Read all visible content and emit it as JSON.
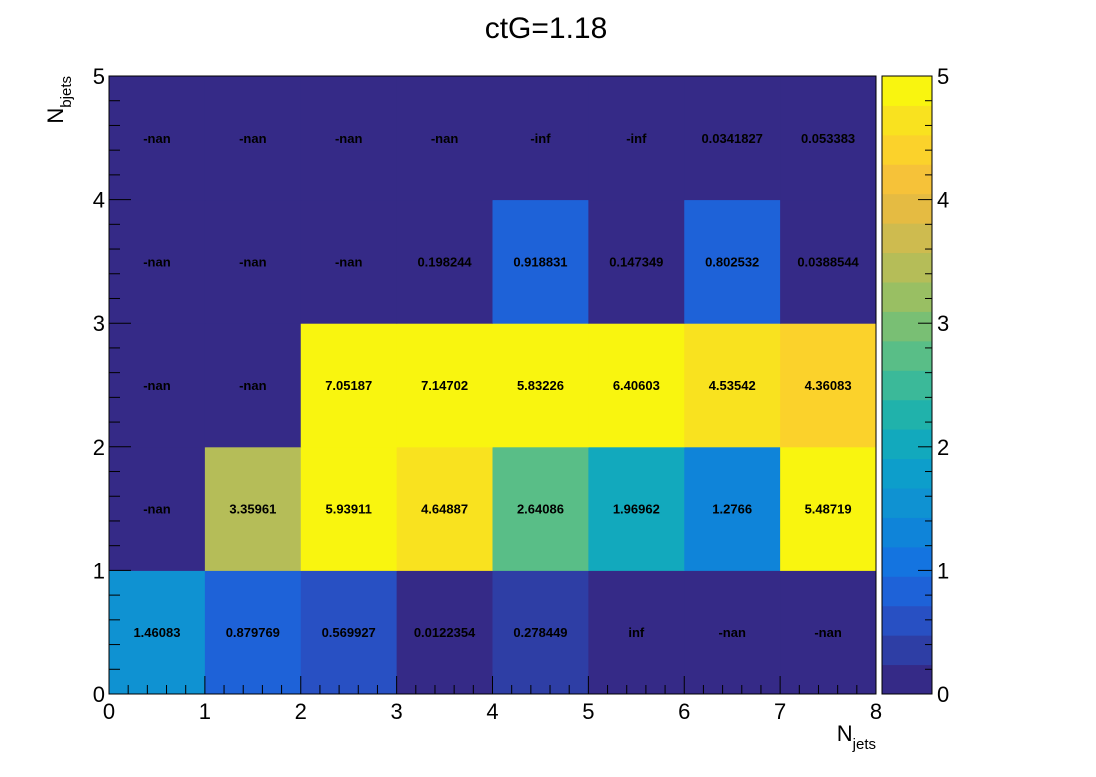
{
  "chart_data": {
    "type": "heatmap",
    "title": "ctG=1.18",
    "xlabel": {
      "main": "N",
      "sub": "jets"
    },
    "ylabel": {
      "main": "N",
      "sub": "bjets"
    },
    "x_edges": [
      0,
      1,
      2,
      3,
      4,
      5,
      6,
      7,
      8
    ],
    "y_edges": [
      0,
      1,
      2,
      3,
      4,
      5
    ],
    "xlim": [
      0,
      8
    ],
    "ylim": [
      0,
      5
    ],
    "x_tick_labels": [
      "0",
      "1",
      "2",
      "3",
      "4",
      "5",
      "6",
      "7",
      "8"
    ],
    "y_tick_labels": [
      "0",
      "1",
      "2",
      "3",
      "4",
      "5"
    ],
    "z_range": [
      0,
      5
    ],
    "colorbar_tick_labels": [
      "0",
      "1",
      "2",
      "3",
      "4",
      "5"
    ],
    "cells": [
      {
        "y_bin": 0,
        "labels": [
          "1.46083",
          "0.879769",
          "0.569927",
          "0.0122354",
          "0.278449",
          "inf",
          "-nan",
          "-nan"
        ],
        "colors": [
          1.46083,
          0.879769,
          0.569927,
          0.0122354,
          0.278449,
          null,
          null,
          null
        ]
      },
      {
        "y_bin": 1,
        "labels": [
          "-nan",
          "3.35961",
          "5.93911",
          "4.64887",
          "2.64086",
          "1.96962",
          "1.2766",
          "5.48719"
        ],
        "colors": [
          null,
          3.35961,
          5.93911,
          4.64887,
          2.64086,
          1.96962,
          1.2766,
          5.48719
        ]
      },
      {
        "y_bin": 2,
        "labels": [
          "-nan",
          "-nan",
          "7.05187",
          "7.14702",
          "5.83226",
          "6.40603",
          "4.53542",
          "4.36083"
        ],
        "colors": [
          null,
          null,
          7.05187,
          7.14702,
          5.83226,
          6.40603,
          4.53542,
          4.36083
        ]
      },
      {
        "y_bin": 3,
        "labels": [
          "-nan",
          "-nan",
          "-nan",
          "0.198244",
          "0.918831",
          "0.147349",
          "0.802532",
          "0.0388544"
        ],
        "colors": [
          null,
          null,
          null,
          0.198244,
          0.918831,
          0.147349,
          0.802532,
          0.0388544
        ]
      },
      {
        "y_bin": 4,
        "labels": [
          "-nan",
          "-nan",
          "-nan",
          "-nan",
          "-inf",
          "-inf",
          "0.0341827",
          "0.053383"
        ],
        "colors": [
          null,
          null,
          null,
          null,
          null,
          null,
          0.0341827,
          0.053383
        ]
      }
    ],
    "palette": [
      "#352a87",
      "#2e3ea5",
      "#2850c3",
      "#1e62d8",
      "#1474e0",
      "#0f84d9",
      "#0f92d2",
      "#0d9ecb",
      "#12a9bd",
      "#20b2ab",
      "#3bb999",
      "#59be87",
      "#79bf74",
      "#99bf63",
      "#b5bd58",
      "#cebb4f",
      "#e5bb42",
      "#f6c239",
      "#fbd22b",
      "#f9e21f",
      "#f9f50f"
    ],
    "empty_color": "#352a87"
  }
}
